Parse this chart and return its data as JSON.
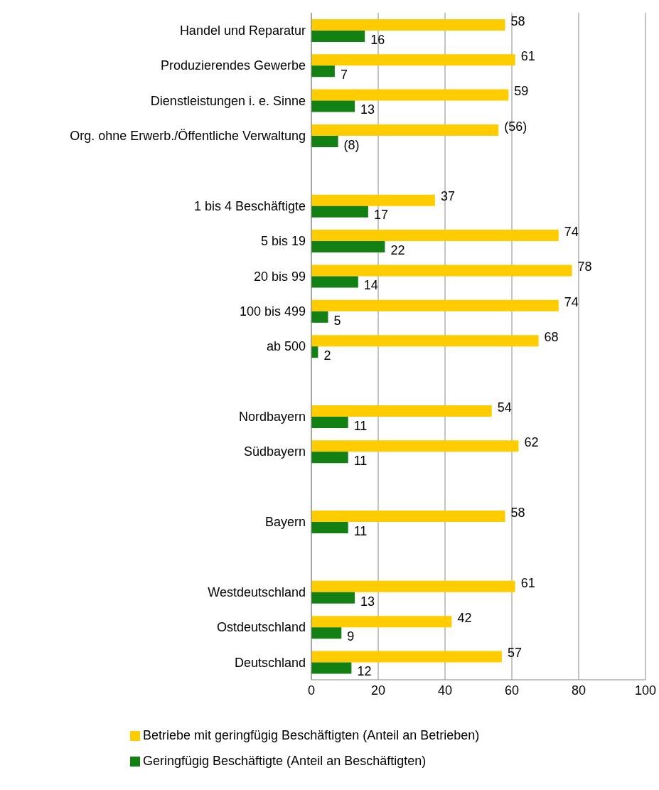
{
  "chart_data": {
    "type": "bar",
    "orientation": "horizontal",
    "categories": [
      "Handel und Reparatur",
      "Produzierendes Gewerbe",
      "Dienstleistungen i. e. Sinne",
      "Org. ohne Erwerb./Öffentliche Verwaltung",
      null,
      "1  bis   4 Beschäftigte",
      "5  bis  19",
      "20  bis  99",
      "100 bis 499",
      "ab 500",
      null,
      "Nordbayern",
      "Südbayern",
      null,
      "Bayern",
      null,
      "Westdeutschland",
      "Ostdeutschland",
      "Deutschland"
    ],
    "series": [
      {
        "name": "Betriebe mit geringfügig Beschäftigten (Anteil an Betrieben)",
        "color": "#ffcc00",
        "values": [
          58,
          61,
          59,
          56,
          null,
          37,
          74,
          78,
          74,
          68,
          null,
          54,
          62,
          null,
          58,
          null,
          61,
          42,
          57
        ],
        "value_labels": [
          "58",
          "61",
          "59",
          "(56)",
          null,
          "37",
          "74",
          "78",
          "74",
          "68",
          null,
          "54",
          "62",
          null,
          "58",
          null,
          "61",
          "42",
          "57"
        ]
      },
      {
        "name": "Geringfügig Beschäftigte (Anteil an Beschäftigten)",
        "color": "#128012",
        "values": [
          16,
          7,
          13,
          8,
          null,
          17,
          22,
          14,
          5,
          2,
          null,
          11,
          11,
          null,
          11,
          null,
          13,
          9,
          12
        ],
        "value_labels": [
          "16",
          "7",
          "13",
          "(8)",
          null,
          "17",
          "22",
          "14",
          "5",
          "2",
          null,
          "11",
          "11",
          null,
          "11",
          null,
          "13",
          "9",
          "12"
        ]
      }
    ],
    "xlim": [
      0,
      100
    ],
    "xticks": [
      0,
      20,
      40,
      60,
      80,
      100
    ],
    "grid": "x",
    "legend": "bottom"
  }
}
